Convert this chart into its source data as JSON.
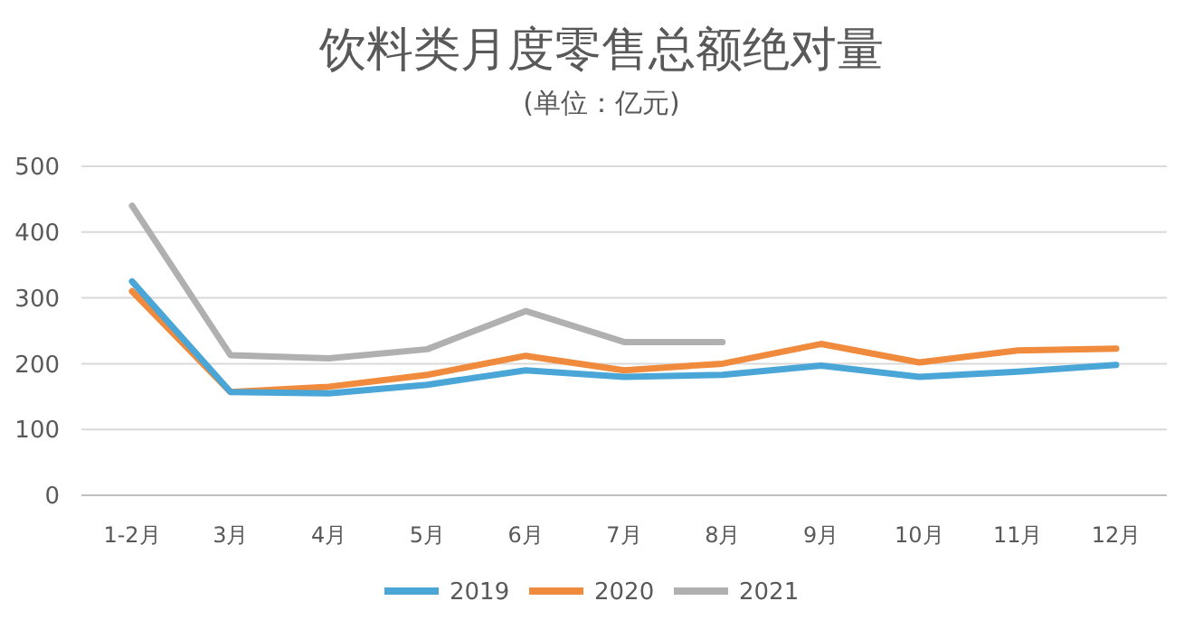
{
  "chart_data": {
    "type": "line",
    "title": "饮料类月度零售总额绝对量",
    "subtitle": "(单位：亿元)",
    "categories": [
      "1-2月",
      "3月",
      "4月",
      "5月",
      "6月",
      "7月",
      "8月",
      "9月",
      "10月",
      "11月",
      "12月"
    ],
    "series": [
      {
        "name": "2019",
        "color": "#4aa6d6",
        "values": [
          325,
          157,
          155,
          168,
          190,
          180,
          183,
          197,
          180,
          188,
          198
        ]
      },
      {
        "name": "2020",
        "color": "#f08a3c",
        "values": [
          310,
          157,
          165,
          183,
          212,
          190,
          200,
          230,
          202,
          220,
          223
        ]
      },
      {
        "name": "2021",
        "color": "#b0b0b0",
        "values": [
          440,
          213,
          208,
          222,
          280,
          233,
          233,
          null,
          null,
          null,
          null
        ]
      }
    ],
    "ylim": [
      0,
      500
    ],
    "yticks": [
      0,
      100,
      200,
      300,
      400,
      500
    ],
    "grid": "y",
    "legend": "bottom",
    "marker": "none",
    "line_style": "solid"
  }
}
